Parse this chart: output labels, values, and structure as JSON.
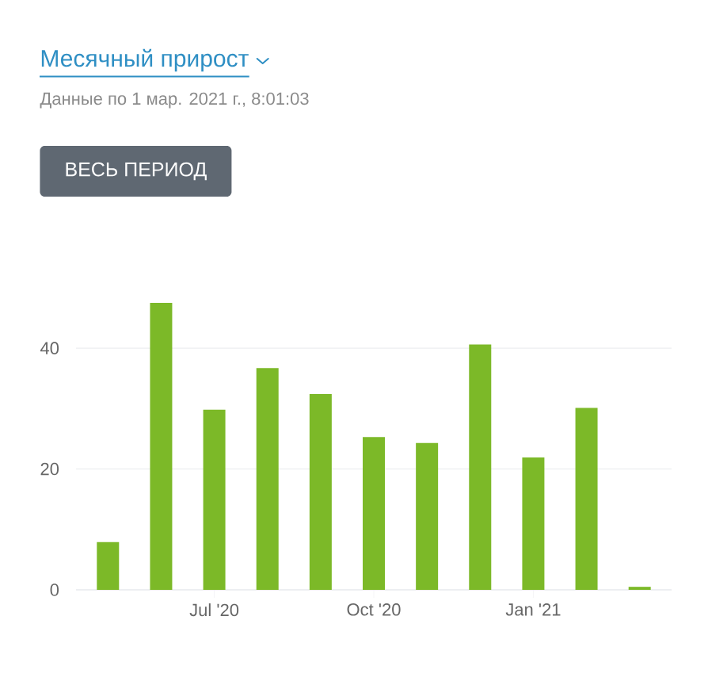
{
  "chart_data": {
    "type": "bar",
    "title": "Месячный прирост",
    "subtitle": "Данные по 1 мар. 2021 г., 8:01:03",
    "annotations": [
      "ВЕСЬ ПЕРИОД"
    ],
    "categories": [
      null,
      null,
      "Jul '20",
      null,
      null,
      "Oct '20",
      null,
      null,
      "Jan '21",
      null,
      null
    ],
    "values": [
      7.9,
      47.5,
      29.8,
      36.7,
      32.4,
      25.3,
      24.3,
      40.6,
      21.9,
      30.1,
      0.5
    ],
    "color": "#7cb928",
    "ylim": [
      0,
      47.5
    ],
    "yticks": [
      0,
      20,
      40
    ],
    "grid": "y"
  }
}
